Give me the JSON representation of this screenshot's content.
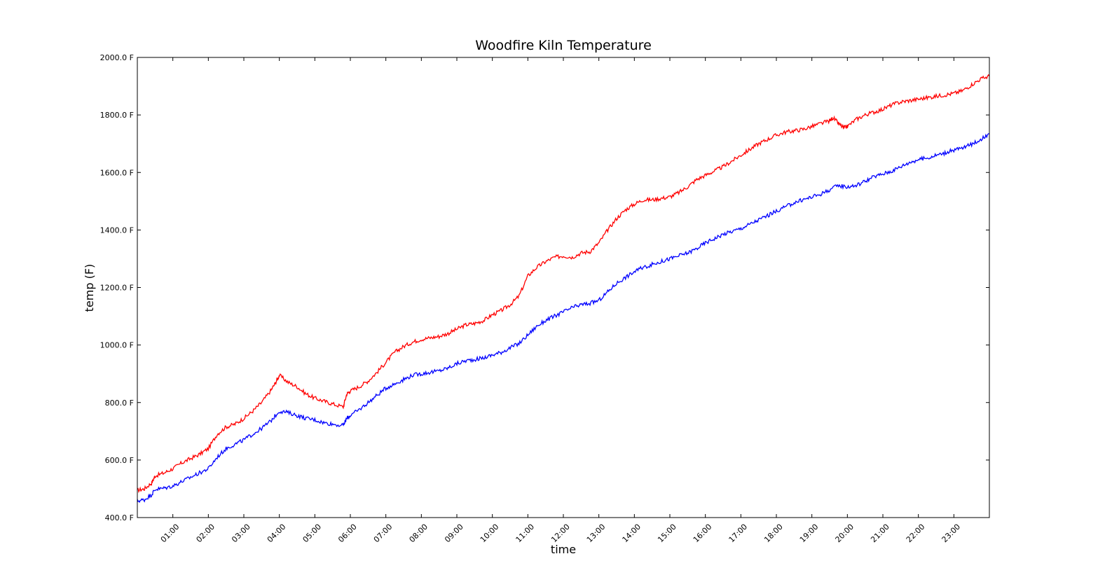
{
  "chart_data": {
    "type": "line",
    "title": "Woodfire Kiln Temperature",
    "xlabel": "time",
    "ylabel": "temp (F)",
    "xlim": [
      0,
      24
    ],
    "ylim": [
      400,
      2000
    ],
    "grid": false,
    "legend": "none",
    "x_ticks": [
      {
        "value": 1,
        "label": "01:00"
      },
      {
        "value": 2,
        "label": "02:00"
      },
      {
        "value": 3,
        "label": "03:00"
      },
      {
        "value": 4,
        "label": "04:00"
      },
      {
        "value": 5,
        "label": "05:00"
      },
      {
        "value": 6,
        "label": "06:00"
      },
      {
        "value": 7,
        "label": "07:00"
      },
      {
        "value": 8,
        "label": "08:00"
      },
      {
        "value": 9,
        "label": "09:00"
      },
      {
        "value": 10,
        "label": "10:00"
      },
      {
        "value": 11,
        "label": "11:00"
      },
      {
        "value": 12,
        "label": "12:00"
      },
      {
        "value": 13,
        "label": "13:00"
      },
      {
        "value": 14,
        "label": "14:00"
      },
      {
        "value": 15,
        "label": "15:00"
      },
      {
        "value": 16,
        "label": "16:00"
      },
      {
        "value": 17,
        "label": "17:00"
      },
      {
        "value": 18,
        "label": "18:00"
      },
      {
        "value": 19,
        "label": "19:00"
      },
      {
        "value": 20,
        "label": "20:00"
      },
      {
        "value": 21,
        "label": "21:00"
      },
      {
        "value": 22,
        "label": "22:00"
      },
      {
        "value": 23,
        "label": "23:00"
      }
    ],
    "y_ticks": [
      {
        "value": 400,
        "label": "400.0 F"
      },
      {
        "value": 600,
        "label": "600.0 F"
      },
      {
        "value": 800,
        "label": "800.0 F"
      },
      {
        "value": 1000,
        "label": "1000.0 F"
      },
      {
        "value": 1200,
        "label": "1200.0 F"
      },
      {
        "value": 1400,
        "label": "1400.0 F"
      },
      {
        "value": 1600,
        "label": "1600.0 F"
      },
      {
        "value": 1800,
        "label": "1800.0 F"
      },
      {
        "value": 2000,
        "label": "2000.0 F"
      }
    ],
    "series": [
      {
        "color": "#ff0000",
        "x": [
          0,
          0.2,
          0.4,
          0.5,
          0.75,
          1,
          1.25,
          1.5,
          1.75,
          2,
          2.25,
          2.5,
          2.75,
          3,
          3.25,
          3.5,
          3.75,
          3.9,
          4,
          4.25,
          4.5,
          4.75,
          5,
          5.25,
          5.5,
          5.8,
          5.9,
          6,
          6.25,
          6.5,
          6.75,
          7,
          7.25,
          7.5,
          7.75,
          8,
          8.25,
          8.5,
          8.75,
          9,
          9.25,
          9.5,
          9.75,
          10,
          10.25,
          10.5,
          10.75,
          11,
          11.25,
          11.5,
          11.75,
          12,
          12.25,
          12.5,
          12.75,
          13,
          13.25,
          13.5,
          13.75,
          14,
          14.25,
          14.5,
          14.75,
          15,
          15.25,
          15.5,
          15.75,
          16,
          16.25,
          16.5,
          16.75,
          17,
          17.25,
          17.5,
          17.75,
          18,
          18.25,
          18.5,
          18.75,
          19,
          19.25,
          19.5,
          19.6,
          19.75,
          19.9,
          20,
          20.25,
          20.5,
          20.75,
          21,
          21.25,
          21.5,
          21.75,
          22,
          22.25,
          22.5,
          22.75,
          23,
          23.25,
          23.5,
          23.75,
          24
        ],
        "y": [
          495,
          500,
          520,
          545,
          555,
          570,
          590,
          605,
          620,
          640,
          690,
          715,
          725,
          745,
          770,
          800,
          840,
          870,
          895,
          870,
          855,
          830,
          815,
          805,
          795,
          785,
          830,
          840,
          855,
          875,
          905,
          940,
          975,
          995,
          1010,
          1020,
          1025,
          1030,
          1040,
          1055,
          1070,
          1075,
          1085,
          1105,
          1120,
          1140,
          1170,
          1240,
          1270,
          1290,
          1305,
          1310,
          1305,
          1320,
          1325,
          1355,
          1400,
          1440,
          1470,
          1490,
          1505,
          1505,
          1510,
          1515,
          1530,
          1550,
          1575,
          1590,
          1605,
          1620,
          1640,
          1660,
          1680,
          1700,
          1715,
          1730,
          1740,
          1745,
          1750,
          1760,
          1770,
          1780,
          1790,
          1770,
          1755,
          1760,
          1785,
          1800,
          1810,
          1820,
          1835,
          1845,
          1850,
          1855,
          1860,
          1865,
          1870,
          1875,
          1885,
          1905,
          1925,
          1935
        ]
      },
      {
        "color": "#0000ff",
        "x": [
          0,
          0.2,
          0.4,
          0.5,
          0.75,
          1,
          1.25,
          1.5,
          1.75,
          2,
          2.25,
          2.5,
          2.75,
          3,
          3.25,
          3.5,
          3.75,
          4,
          4.25,
          4.5,
          4.75,
          5,
          5.25,
          5.5,
          5.8,
          5.9,
          6,
          6.25,
          6.5,
          6.75,
          7,
          7.25,
          7.5,
          7.75,
          8,
          8.25,
          8.5,
          8.75,
          9,
          9.25,
          9.5,
          9.75,
          10,
          10.25,
          10.5,
          10.75,
          11,
          11.25,
          11.5,
          11.75,
          12,
          12.25,
          12.5,
          12.75,
          13,
          13.25,
          13.5,
          13.75,
          14,
          14.25,
          14.5,
          14.75,
          15,
          15.25,
          15.5,
          15.75,
          16,
          16.25,
          16.5,
          16.75,
          17,
          17.25,
          17.5,
          17.75,
          18,
          18.25,
          18.5,
          18.75,
          19,
          19.25,
          19.5,
          19.75,
          20,
          20.25,
          20.5,
          20.75,
          21,
          21.25,
          21.5,
          21.75,
          22,
          22.25,
          22.5,
          22.75,
          23,
          23.25,
          23.5,
          23.75,
          24
        ],
        "y": [
          458,
          462,
          480,
          498,
          502,
          510,
          525,
          540,
          555,
          570,
          610,
          640,
          655,
          670,
          690,
          710,
          735,
          770,
          765,
          755,
          745,
          740,
          730,
          725,
          720,
          745,
          755,
          775,
          800,
          825,
          850,
          865,
          880,
          895,
          900,
          905,
          910,
          920,
          935,
          945,
          950,
          955,
          965,
          975,
          990,
          1005,
          1035,
          1065,
          1085,
          1100,
          1115,
          1130,
          1140,
          1145,
          1155,
          1185,
          1215,
          1235,
          1255,
          1270,
          1280,
          1290,
          1300,
          1310,
          1320,
          1335,
          1355,
          1370,
          1385,
          1395,
          1405,
          1420,
          1435,
          1450,
          1465,
          1480,
          1495,
          1505,
          1515,
          1525,
          1540,
          1555,
          1550,
          1555,
          1570,
          1585,
          1595,
          1605,
          1620,
          1635,
          1645,
          1650,
          1660,
          1668,
          1678,
          1685,
          1698,
          1715,
          1735
        ]
      }
    ]
  }
}
